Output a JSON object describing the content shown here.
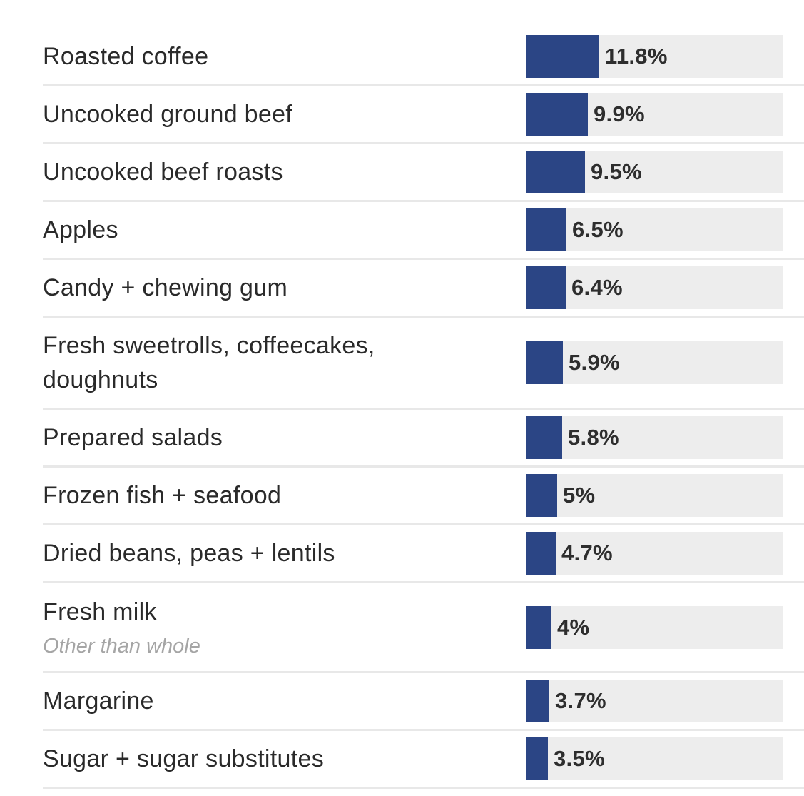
{
  "chart_data": {
    "type": "bar",
    "orientation": "horizontal",
    "title": "",
    "xlabel": "",
    "ylabel": "",
    "xlim": [
      0,
      41.6
    ],
    "colors": {
      "bar": "#2b4585",
      "track": "#ededed",
      "divider": "#e8e8e8"
    },
    "rows": [
      {
        "category": "Roasted coffee",
        "value": 11.8,
        "value_label": "11.8%"
      },
      {
        "category": "Uncooked ground beef",
        "value": 9.9,
        "value_label": "9.9%"
      },
      {
        "category": "Uncooked beef roasts",
        "value": 9.5,
        "value_label": "9.5%"
      },
      {
        "category": "Apples",
        "value": 6.5,
        "value_label": "6.5%"
      },
      {
        "category": "Candy + chewing gum",
        "value": 6.4,
        "value_label": "6.4%"
      },
      {
        "category": "Fresh sweetrolls, coffeecakes, doughnuts",
        "value": 5.9,
        "value_label": "5.9%"
      },
      {
        "category": "Prepared salads",
        "value": 5.8,
        "value_label": "5.8%"
      },
      {
        "category": "Frozen fish + seafood",
        "value": 5,
        "value_label": "5%"
      },
      {
        "category": "Dried beans, peas + lentils",
        "value": 4.7,
        "value_label": "4.7%"
      },
      {
        "category": "Fresh milk",
        "note": "Other than whole",
        "value": 4,
        "value_label": "4%"
      },
      {
        "category": "Margarine",
        "value": 3.7,
        "value_label": "3.7%"
      },
      {
        "category": "Sugar + sugar substitutes",
        "value": 3.5,
        "value_label": "3.5%"
      }
    ]
  }
}
